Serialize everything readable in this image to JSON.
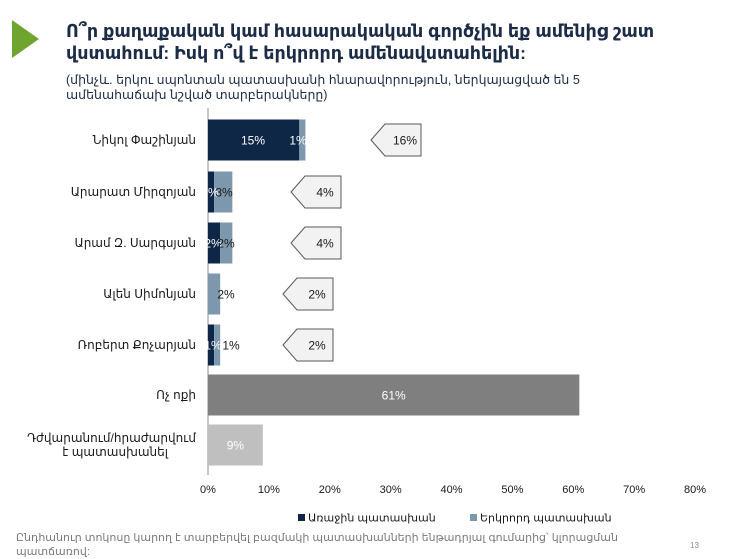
{
  "header": {
    "title": "Ո՞ր քաղաքական կամ հասարակական գործչին եք ամենից շատ վստահում: Իսկ ո՞վ է երկրորդ ամենավստահելին:",
    "subtitle": "(մինչև. երկու սպոնտան պատասխանի հնարավորություն, ներկայացված են 5 ամենահաճախ նշված տարբերակները)"
  },
  "chart_data": {
    "type": "bar",
    "orientation": "horizontal",
    "stacked": true,
    "categories": [
      "Նիկոլ Փաշինյան",
      "Արարատ Միրզոյան",
      "Արամ Զ. Սարգսյան",
      "Ալեն Սիմոնյան",
      "Ռոբերտ Քոչարյան",
      "Ոչ ոքի",
      "Դժվարանում/հրաժարվում է պատասխանել"
    ],
    "series": [
      {
        "name": "Առաջին պատասխան",
        "color": "#0f2747",
        "values": [
          15,
          1,
          2,
          0,
          1,
          null,
          null
        ],
        "labels": [
          "15%",
          "1%",
          "2%",
          "",
          "1%",
          "",
          ""
        ]
      },
      {
        "name": "Երկրորդ պատասխան",
        "color": "#7d97ad",
        "values": [
          1,
          3,
          2,
          2,
          1,
          null,
          null
        ],
        "labels": [
          "1%",
          "3%",
          "2%",
          "2%",
          "1%",
          "",
          ""
        ]
      },
      {
        "name": "Ոչ ոքի",
        "color": "#7f7f7f",
        "values": [
          null,
          null,
          null,
          null,
          null,
          61,
          null
        ],
        "labels": [
          "",
          "",
          "",
          "",
          "",
          "61%",
          ""
        ]
      },
      {
        "name": "Դժվարանում",
        "color": "#bfbfbf",
        "values": [
          null,
          null,
          null,
          null,
          null,
          null,
          9
        ],
        "labels": [
          "",
          "",
          "",
          "",
          "",
          "",
          "9%"
        ]
      }
    ],
    "totals": [
      16,
      4,
      4,
      2,
      2,
      null,
      null
    ],
    "total_labels": [
      "16%",
      "4%",
      "4%",
      "2%",
      "2%",
      "",
      ""
    ],
    "xlim": [
      0,
      80
    ],
    "xticks": [
      0,
      10,
      20,
      30,
      40,
      50,
      60,
      70,
      80
    ],
    "xtick_labels": [
      "0%",
      "10%",
      "20%",
      "30%",
      "40%",
      "50%",
      "60%",
      "70%",
      "80%"
    ],
    "legend": [
      "Առաջին պատասխան",
      "Երկրորդ պատասխան"
    ],
    "legend_position": "bottom"
  },
  "footnote": "Ընդհանուր տոկոսը կարող է տարբերվել բազմակի պատասխանների ենթադրյալ գումարից՝ կլորացման պատճառով:",
  "page_number": "13"
}
